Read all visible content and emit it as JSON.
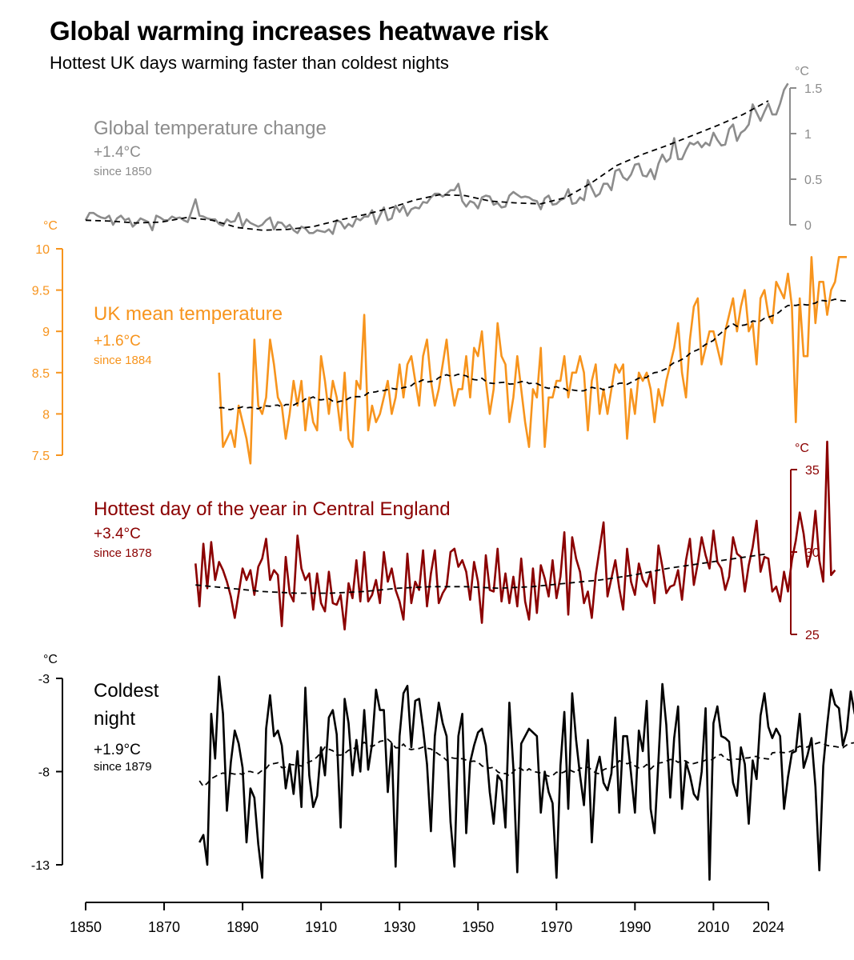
{
  "title": "Global warming increases heatwave risk",
  "subtitle": "Hottest UK days warming faster than coldest nights",
  "chart_data": {
    "type": "line",
    "x_axis": {
      "min": 1850,
      "max": 2024,
      "ticks": [
        1850,
        1870,
        1890,
        1910,
        1930,
        1950,
        1970,
        1990,
        2010,
        2024
      ]
    },
    "panels": [
      {
        "id": "global",
        "name": "Global temperature change",
        "change": "+1.4°C",
        "since": "since 1850",
        "unit": "°C",
        "color": "#8c8c8c",
        "axis_side": "right",
        "ylim": [
          0,
          1.5
        ],
        "ticks": [
          0,
          0.5,
          1,
          1.5
        ],
        "tick_labels": [
          "0",
          "0.5",
          "1",
          "1.5"
        ],
        "start_year": 1850,
        "values": [
          0.05,
          0.13,
          0.13,
          0.1,
          0.08,
          0.07,
          0.1,
          0.0,
          0.07,
          0.1,
          0.05,
          0.07,
          -0.02,
          0.02,
          0.07,
          0.05,
          0.03,
          -0.06,
          0.1,
          0.08,
          0.05,
          0.05,
          0.09,
          0.07,
          0.08,
          0.05,
          0.03,
          0.15,
          0.28,
          0.1,
          0.09,
          0.07,
          0.06,
          0.06,
          0.01,
          -0.01,
          0.06,
          0.03,
          0.04,
          0.13,
          -0.02,
          0.06,
          0.02,
          0.0,
          -0.02,
          0.0,
          0.05,
          0.08,
          -0.05,
          0.03,
          0.02,
          -0.03,
          0.0,
          -0.06,
          -0.09,
          -0.02,
          -0.04,
          -0.09,
          -0.09,
          -0.06,
          -0.07,
          -0.08,
          -0.05,
          -0.1,
          0.05,
          0.03,
          -0.04,
          0.01,
          -0.02,
          0.07,
          0.05,
          0.09,
          0.09,
          0.16,
          0.01,
          0.1,
          0.19,
          0.05,
          0.07,
          0.21,
          0.14,
          0.21,
          0.1,
          0.17,
          0.19,
          0.18,
          0.25,
          0.24,
          0.3,
          0.34,
          0.34,
          0.31,
          0.34,
          0.38,
          0.38,
          0.45,
          0.26,
          0.2,
          0.26,
          0.24,
          0.18,
          0.3,
          0.32,
          0.31,
          0.22,
          0.24,
          0.19,
          0.2,
          0.32,
          0.36,
          0.33,
          0.3,
          0.31,
          0.3,
          0.27,
          0.26,
          0.17,
          0.29,
          0.32,
          0.22,
          0.23,
          0.27,
          0.29,
          0.39,
          0.23,
          0.24,
          0.3,
          0.27,
          0.49,
          0.4,
          0.31,
          0.34,
          0.45,
          0.45,
          0.38,
          0.59,
          0.61,
          0.52,
          0.49,
          0.55,
          0.66,
          0.67,
          0.54,
          0.53,
          0.61,
          0.5,
          0.67,
          0.77,
          0.69,
          0.73,
          0.95,
          0.72,
          0.72,
          0.82,
          0.9,
          0.88,
          0.91,
          0.85,
          0.9,
          0.87,
          1.01,
          0.93,
          0.87,
          0.88,
          1.05,
          1.1,
          0.92,
          1.01,
          1.04,
          1.1,
          1.32,
          1.23,
          1.14,
          1.24,
          1.33,
          1.21,
          1.21,
          1.33,
          1.48,
          1.55
        ],
        "trend": [
          0.05,
          0.04,
          0.02,
          0.03,
          0.08,
          0.05,
          -0.03,
          -0.06,
          -0.05,
          -0.02,
          0.05,
          0.11,
          0.18,
          0.27,
          0.33,
          0.32,
          0.26,
          0.24,
          0.23,
          0.3,
          0.46,
          0.65,
          0.77,
          0.87,
          0.98,
          1.09,
          1.21,
          1.36
        ]
      },
      {
        "id": "uk_mean",
        "name": "UK mean temperature",
        "change": "+1.6°C",
        "since": "since 1884",
        "unit": "°C",
        "color": "#f7941d",
        "axis_side": "left",
        "ylim": [
          7.5,
          10
        ],
        "ticks": [
          7.5,
          8,
          8.5,
          9,
          9.5,
          10
        ],
        "tick_labels": [
          "7.5",
          "8",
          "8.5",
          "9",
          "9.5",
          "10"
        ],
        "start_year": 1884,
        "values": [
          8.5,
          7.6,
          7.7,
          7.8,
          7.6,
          8.1,
          7.9,
          7.7,
          7.4,
          8.9,
          8.1,
          8.0,
          8.2,
          8.9,
          8.6,
          8.2,
          8.1,
          7.7,
          8.0,
          8.4,
          8.1,
          8.4,
          7.8,
          8.2,
          7.9,
          7.8,
          8.7,
          8.4,
          8.0,
          8.4,
          8.2,
          7.8,
          8.5,
          7.7,
          7.6,
          8.4,
          8.3,
          9.2,
          7.8,
          8.1,
          7.9,
          8.0,
          8.2,
          8.4,
          8.0,
          8.2,
          8.6,
          8.2,
          8.6,
          8.7,
          8.4,
          8.1,
          8.7,
          8.9,
          8.4,
          8.1,
          8.3,
          8.6,
          8.9,
          8.4,
          8.1,
          8.3,
          8.3,
          8.7,
          8.2,
          8.8,
          8.7,
          9.0,
          8.4,
          8.0,
          8.3,
          9.1,
          8.7,
          8.6,
          7.9,
          8.2,
          8.7,
          8.3,
          7.9,
          7.6,
          8.3,
          8.2,
          8.8,
          7.6,
          8.2,
          8.2,
          8.4,
          8.4,
          8.7,
          8.2,
          8.5,
          8.5,
          8.7,
          8.5,
          7.8,
          8.4,
          8.6,
          8.0,
          8.3,
          8.0,
          8.3,
          8.6,
          8.5,
          8.6,
          7.7,
          8.3,
          8.0,
          8.5,
          8.4,
          8.5,
          8.3,
          7.9,
          8.3,
          8.1,
          8.4,
          8.6,
          8.8,
          9.1,
          8.5,
          8.2,
          8.9,
          9.3,
          9.4,
          8.6,
          8.8,
          9.0,
          9.0,
          8.8,
          8.6,
          9.0,
          9.2,
          9.4,
          9.0,
          9.3,
          9.5,
          9.0,
          9.1,
          8.6,
          9.4,
          9.5,
          9.2,
          9.1,
          9.6,
          9.5,
          9.4,
          9.7,
          9.3,
          7.9,
          9.4,
          8.7,
          8.7,
          9.9,
          9.1,
          9.6,
          9.6,
          9.2,
          9.5,
          9.6,
          9.9,
          9.9,
          9.9
        ]
      },
      {
        "id": "uk_hottest",
        "name": "Hottest day of the year in Central England",
        "change": "+3.4°C",
        "since": "since 1878",
        "unit": "°C",
        "color": "#8b0000",
        "axis_side": "right",
        "ylim": [
          25,
          35
        ],
        "ticks": [
          25,
          30,
          35
        ],
        "tick_labels": [
          "25",
          "30",
          "35"
        ],
        "start_year": 1878,
        "values": [
          29.3,
          26.7,
          30.5,
          27.8,
          30.6,
          28.3,
          29.4,
          28.9,
          28.2,
          27.3,
          26.0,
          27.5,
          29.0,
          28.3,
          28.9,
          27.4,
          29.1,
          29.6,
          30.8,
          28.3,
          28.9,
          28.6,
          25.5,
          29.7,
          27.5,
          27.0,
          31.0,
          29.0,
          28.3,
          28.7,
          26.5,
          28.7,
          26.9,
          26.4,
          28.8,
          26.9,
          26.8,
          27.4,
          25.3,
          28.1,
          27.2,
          29.5,
          27.0,
          30.0,
          27.0,
          27.4,
          28.3,
          26.9,
          30.0,
          28.2,
          29.0,
          27.7,
          27.0,
          25.9,
          29.9,
          26.9,
          28.2,
          27.7,
          30.1,
          26.7,
          28.7,
          30.1,
          26.9,
          27.5,
          27.9,
          30.0,
          30.2,
          29.1,
          29.5,
          28.8,
          27.1,
          29.4,
          28.2,
          25.7,
          29.8,
          27.7,
          27.6,
          30.2,
          27.0,
          28.7,
          26.9,
          28.5,
          26.7,
          29.6,
          27.0,
          25.9,
          29.0,
          26.3,
          29.2,
          28.4,
          27.3,
          29.5,
          27.2,
          28.5,
          31.2,
          26.2,
          30.9,
          29.6,
          28.8,
          26.9,
          27.6,
          26.0,
          28.6,
          30.2,
          31.8,
          27.3,
          28.4,
          29.5,
          27.8,
          26.5,
          30.2,
          28.2,
          27.4,
          29.3,
          28.3,
          27.9,
          28.8,
          26.9,
          30.4,
          29.1,
          27.5,
          27.9,
          28.0,
          28.9,
          27.1,
          29.5,
          30.8,
          28.0,
          29.3,
          30.9,
          29.8,
          29.0,
          31.3,
          29.4,
          29.0,
          27.7,
          28.5,
          30.9,
          29.9,
          29.7,
          27.6,
          29.2,
          30.3,
          31.9,
          28.8,
          29.7,
          29.6,
          27.6,
          27.9,
          27.0,
          28.8,
          27.6,
          29.5,
          30.7,
          32.4,
          31.1,
          29.1,
          30.0,
          32.5,
          29.5,
          28.2,
          36.7,
          28.6,
          28.9
        ],
        "trend": [
          28.0,
          27.8,
          27.6,
          27.5,
          27.5,
          27.6,
          27.8,
          27.9,
          27.9,
          27.8,
          27.9,
          28.1,
          28.3,
          28.6,
          29.0,
          29.3,
          29.6,
          29.9
        ]
      },
      {
        "id": "uk_coldest",
        "name": "Coldest night",
        "change": "+1.9°C",
        "since": "since 1879",
        "unit": "°C",
        "color": "#000000",
        "axis_side": "left",
        "ylim": [
          -13,
          -3
        ],
        "ticks": [
          -13,
          -8,
          -3
        ],
        "tick_labels": [
          "-13",
          "-8",
          "-3"
        ],
        "start_year": 1879,
        "values": [
          -11.8,
          -11.4,
          -13.0,
          -4.9,
          -7.3,
          -2.9,
          -4.9,
          -10.1,
          -7.5,
          -5.8,
          -6.5,
          -7.8,
          -11.8,
          -8.9,
          -9.4,
          -11.9,
          -13.7,
          -5.7,
          -3.9,
          -6.1,
          -5.8,
          -6.6,
          -8.9,
          -7.6,
          -9.2,
          -6.9,
          -9.9,
          -3.5,
          -8.2,
          -9.9,
          -9.3,
          -6.7,
          -8.2,
          -5.1,
          -4.7,
          -6.0,
          -11.0,
          -4.1,
          -5.4,
          -8.2,
          -6.3,
          -8.0,
          -4.7,
          -7.9,
          -6.5,
          -3.6,
          -4.7,
          -4.7,
          -9.1,
          -6.5,
          -13.1,
          -6.1,
          -3.8,
          -3.4,
          -6.7,
          -4.2,
          -4.1,
          -5.7,
          -7.6,
          -11.2,
          -6.1,
          -4.3,
          -5.4,
          -6.1,
          -10.7,
          -13.1,
          -6.1,
          -4.9,
          -11.3,
          -7.5,
          -6.6,
          -5.9,
          -5.7,
          -6.6,
          -9.1,
          -10.8,
          -8.2,
          -8.5,
          -11.0,
          -4.3,
          -7.8,
          -13.4,
          -6.5,
          -6.1,
          -5.7,
          -5.9,
          -6.1,
          -10.2,
          -8.0,
          -9.1,
          -9.7,
          -13.7,
          -7.7,
          -4.8,
          -10.0,
          -3.8,
          -6.3,
          -8.2,
          -9.8,
          -6.3,
          -11.8,
          -8.0,
          -7.2,
          -8.6,
          -9.0,
          -8.1,
          -5.1,
          -10.2,
          -6.1,
          -6.1,
          -8.1,
          -10.2,
          -5.8,
          -6.9,
          -4.2,
          -10.0,
          -11.3,
          -7.4,
          -3.3,
          -5.5,
          -9.4,
          -6.2,
          -4.5,
          -10.0,
          -7.5,
          -8.2,
          -9.2,
          -9.5,
          -8.0,
          -4.6,
          -13.8,
          -5.4,
          -4.5,
          -6.1,
          -6.2,
          -6.4,
          -8.6,
          -9.3,
          -6.7,
          -7.6,
          -10.8,
          -7.4,
          -8.4,
          -5.0,
          -3.8,
          -5.6,
          -6.2,
          -5.7,
          -6.1,
          -10.0,
          -8.3,
          -7.0,
          -6.9,
          -4.9,
          -7.8,
          -7.1,
          -6.2,
          -8.8,
          -13.3,
          -7.7,
          -5.5,
          -3.6,
          -4.4,
          -4.6,
          -6.6,
          -5.8,
          -3.7,
          -4.9,
          -5.1,
          -9.6,
          -6.1
        ]
      }
    ]
  }
}
